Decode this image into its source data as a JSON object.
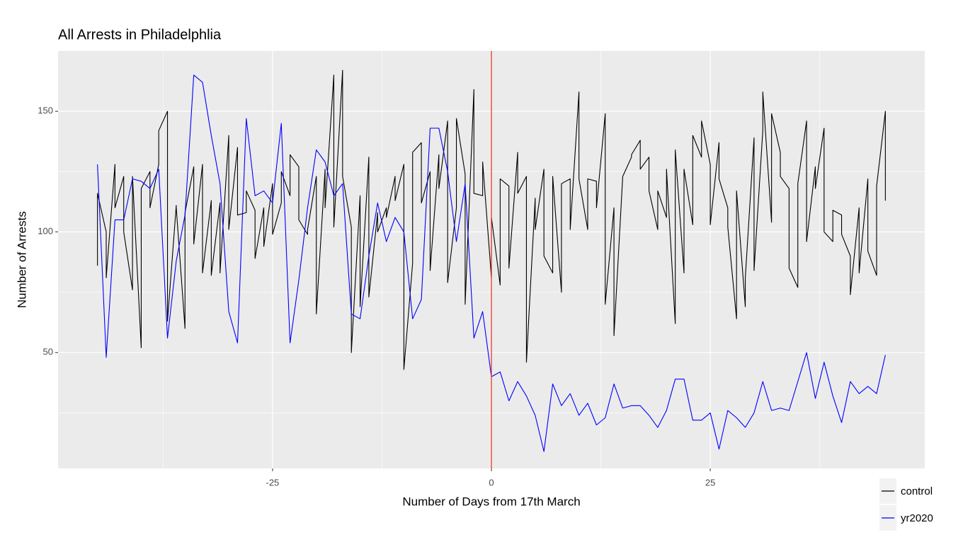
{
  "chart_data": {
    "type": "line",
    "title": "All Arrests in Philadelphlia",
    "x_label": "Number of Days from 17th March",
    "y_label": "Number of Arrests",
    "xlim": [
      -49.5,
      49.5
    ],
    "xticks": [
      -25,
      0,
      25
    ],
    "ylim": [
      2,
      175
    ],
    "yticks": [
      50,
      100,
      150
    ],
    "grid": true,
    "minor_grid": true,
    "legend": "bottom-right",
    "vline": 0,
    "vline_color": "#e8372a",
    "series": [
      {
        "name": "control",
        "color": "#000000",
        "x": [
          -45,
          -45,
          -44,
          -44,
          -43,
          -43,
          -42,
          -42,
          -41,
          -41,
          -40,
          -40,
          -39,
          -39,
          -38,
          -38,
          -37,
          -37,
          -36,
          -36,
          -35,
          -35,
          -34,
          -34,
          -33,
          -33,
          -32,
          -32,
          -31,
          -31,
          -30,
          -30,
          -29,
          -29,
          -28,
          -28,
          -27,
          -27,
          -26,
          -26,
          -25,
          -25,
          -24,
          -24,
          -23,
          -23,
          -22,
          -22,
          -21,
          -21,
          -20,
          -20,
          -19,
          -19,
          -18,
          -18,
          -17,
          -17,
          -16,
          -16,
          -15,
          -15,
          -14,
          -14,
          -13,
          -13,
          -12,
          -12,
          -11,
          -11,
          -10,
          -10,
          -9,
          -9,
          -8,
          -8,
          -7,
          -7,
          -6,
          -6,
          -5,
          -5,
          -4,
          -4,
          -3,
          -3,
          -2,
          -2,
          -1,
          -1,
          0,
          0,
          1,
          1,
          2,
          2,
          3,
          3,
          4,
          4,
          5,
          5,
          6,
          6,
          7,
          7,
          8,
          8,
          9,
          9,
          10,
          10,
          11,
          11,
          12,
          12,
          13,
          13,
          14,
          14,
          15,
          15,
          16,
          16,
          17,
          17,
          18,
          18,
          19,
          19,
          20,
          20,
          21,
          21,
          22,
          22,
          23,
          23,
          24,
          24,
          25,
          25,
          26,
          26,
          27,
          27,
          28,
          28,
          29,
          29,
          30,
          30,
          31,
          31,
          32,
          32,
          33,
          33,
          34,
          34,
          35,
          35,
          36,
          36,
          37,
          37,
          38,
          38,
          39,
          39,
          40,
          40,
          41,
          41,
          42,
          42,
          43,
          43,
          44,
          44,
          45,
          45
        ],
        "values": [
          86,
          116,
          100,
          81,
          128,
          110,
          123,
          100,
          76,
          123,
          52,
          118,
          125,
          110,
          128,
          142,
          150,
          63,
          111,
          110,
          60,
          108,
          127,
          95,
          128,
          83,
          113,
          82,
          112,
          83,
          140,
          101,
          135,
          107,
          108,
          117,
          109,
          89,
          110,
          94,
          120,
          99,
          112,
          125,
          115,
          132,
          127,
          105,
          99,
          101,
          123,
          66,
          126,
          110,
          165,
          102,
          167,
          123,
          102,
          50,
          115,
          69,
          131,
          73,
          108,
          100,
          110,
          106,
          123,
          113,
          128,
          43,
          87,
          133,
          137,
          112,
          125,
          84,
          132,
          118,
          146,
          79,
          110,
          147,
          124,
          70,
          159,
          116,
          115,
          129,
          81,
          106,
          78,
          122,
          119,
          85,
          133,
          116,
          123,
          46,
          114,
          101,
          126,
          90,
          83,
          123,
          75,
          120,
          122,
          101,
          158,
          122,
          101,
          122,
          121,
          110,
          149,
          70,
          110,
          57,
          123,
          123,
          131,
          132,
          138,
          126,
          131,
          117,
          101,
          117,
          106,
          126,
          62,
          134,
          83,
          126,
          103,
          140,
          131,
          146,
          128,
          103,
          137,
          122,
          110,
          102,
          64,
          117,
          69,
          81,
          139,
          84,
          142,
          158,
          104,
          149,
          133,
          123,
          118,
          85,
          77,
          120,
          146,
          96,
          127,
          118,
          143,
          100,
          96,
          109,
          107,
          99,
          90,
          74,
          110,
          83,
          122,
          92,
          82,
          119,
          150,
          113
        ]
      },
      {
        "name": "yr2020",
        "color": "#0000ff",
        "x": [
          -45,
          -44,
          -43,
          -42,
          -41,
          -40,
          -39,
          -38,
          -37,
          -36,
          -35,
          -34,
          -33,
          -32,
          -31,
          -30,
          -29,
          -28,
          -27,
          -26,
          -25,
          -24,
          -23,
          -22,
          -21,
          -20,
          -19,
          -18,
          -17,
          -16,
          -15,
          -14,
          -13,
          -12,
          -11,
          -10,
          -9,
          -8,
          -7,
          -6,
          -5,
          -4,
          -3,
          -2,
          -1,
          0,
          1,
          2,
          3,
          4,
          5,
          6,
          7,
          8,
          9,
          10,
          11,
          12,
          13,
          14,
          15,
          16,
          17,
          18,
          19,
          20,
          21,
          22,
          23,
          24,
          25,
          26,
          27,
          28,
          29,
          30,
          31,
          32,
          33,
          34,
          35,
          36,
          37,
          38,
          39,
          40,
          41,
          42,
          43,
          44,
          45
        ],
        "values": [
          128,
          48,
          105,
          105,
          122,
          121,
          118,
          126,
          56,
          88,
          107,
          165,
          162,
          140,
          120,
          67,
          54,
          147,
          115,
          117,
          112,
          145,
          54,
          80,
          110,
          134,
          129,
          115,
          120,
          66,
          64,
          90,
          112,
          96,
          106,
          100,
          64,
          72,
          143,
          143,
          125,
          96,
          120,
          56,
          67,
          40,
          42,
          30,
          38,
          32,
          24,
          9,
          37,
          28,
          33,
          24,
          29,
          20,
          23,
          37,
          27,
          28,
          28,
          24,
          19,
          26,
          39,
          39,
          22,
          22,
          25,
          10,
          26,
          23,
          19,
          25,
          38,
          26,
          27,
          26,
          38,
          50,
          31,
          46,
          32,
          21,
          38,
          33,
          36,
          33,
          49
        ]
      }
    ]
  }
}
